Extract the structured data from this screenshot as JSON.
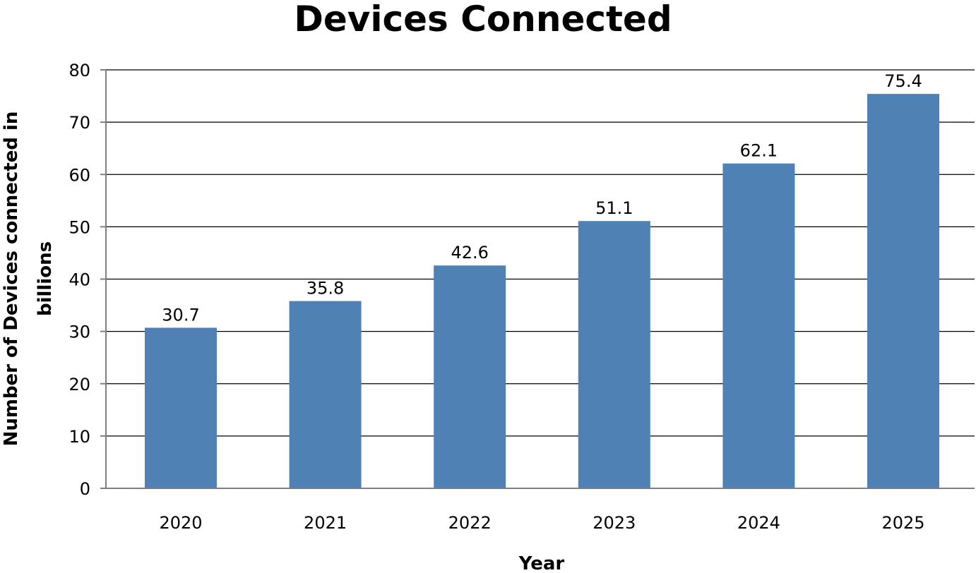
{
  "chart_data": {
    "type": "bar",
    "title": "Devices Connected",
    "xlabel": "Year",
    "ylabel_lines": [
      "Number of Devices connected in",
      "billions"
    ],
    "categories": [
      "2020",
      "2021",
      "2022",
      "2023",
      "2024",
      "2025"
    ],
    "values": [
      30.7,
      35.8,
      42.6,
      51.1,
      62.1,
      75.4
    ],
    "data_labels": [
      "30.7",
      "35.8",
      "42.6",
      "51.1",
      "62.1",
      "75.4"
    ],
    "ylim": [
      0,
      80
    ],
    "yticks": [
      0,
      10,
      20,
      30,
      40,
      50,
      60,
      70,
      80
    ],
    "grid": true,
    "legend": "none",
    "bar_color": "#4f81b5"
  }
}
